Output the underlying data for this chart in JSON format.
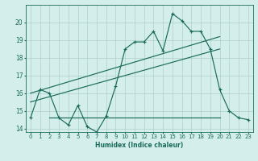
{
  "xlabel": "Humidex (Indice chaleur)",
  "bg_color": "#d4eeec",
  "grid_color": "#afd0cc",
  "line_color": "#1a6b5a",
  "xlim": [
    -0.5,
    23.5
  ],
  "ylim": [
    13.8,
    21.0
  ],
  "yticks": [
    14,
    15,
    16,
    17,
    18,
    19,
    20
  ],
  "xticks": [
    0,
    1,
    2,
    3,
    4,
    5,
    6,
    7,
    8,
    9,
    10,
    11,
    12,
    13,
    14,
    15,
    16,
    17,
    18,
    19,
    20,
    21,
    22,
    23
  ],
  "line1_x": [
    0,
    1,
    2,
    3,
    4,
    5,
    6,
    7,
    8,
    9,
    10,
    11,
    12,
    13,
    14,
    15,
    16,
    17,
    18,
    19,
    20,
    21,
    22,
    23
  ],
  "line1_y": [
    14.6,
    16.2,
    16.0,
    14.6,
    14.2,
    15.3,
    14.1,
    13.8,
    14.7,
    16.4,
    18.5,
    18.9,
    18.9,
    19.5,
    18.4,
    20.5,
    20.1,
    19.5,
    19.5,
    18.5,
    16.2,
    15.0,
    14.6,
    14.5
  ],
  "line2_x": [
    0,
    20
  ],
  "line2_y": [
    15.5,
    18.5
  ],
  "line3_x": [
    0,
    20
  ],
  "line3_y": [
    16.0,
    19.2
  ],
  "line4_x": [
    2,
    20
  ],
  "line4_y": [
    14.6,
    14.6
  ]
}
